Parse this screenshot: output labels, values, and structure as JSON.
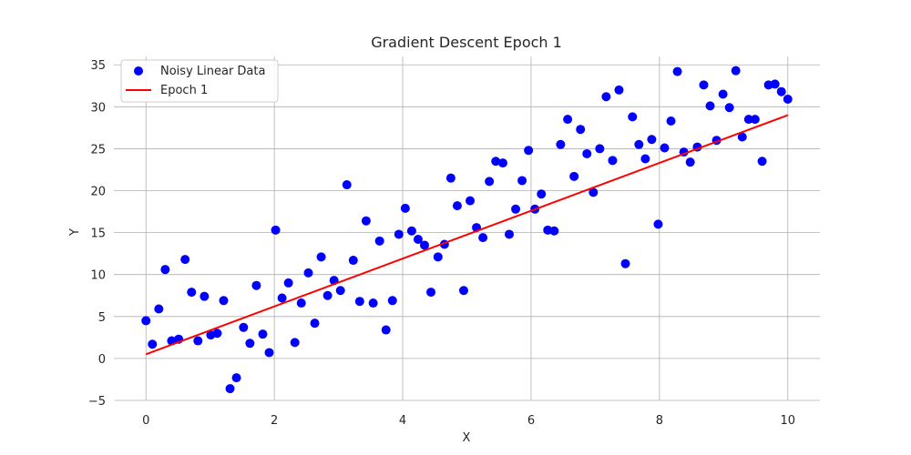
{
  "chart_data": {
    "type": "scatter",
    "title": "Gradient Descent Epoch 1",
    "xlabel": "X",
    "ylabel": "Y",
    "xlim": [
      -0.5,
      10.5
    ],
    "ylim": [
      -5,
      36
    ],
    "xticks": [
      0,
      2,
      4,
      6,
      8,
      10
    ],
    "yticks": [
      -5,
      0,
      5,
      10,
      15,
      20,
      25,
      30,
      35
    ],
    "xtick_labels": [
      "0",
      "2",
      "4",
      "6",
      "8",
      "10"
    ],
    "ytick_labels": [
      "−5",
      "0",
      "5",
      "10",
      "15",
      "20",
      "25",
      "30",
      "35"
    ],
    "grid": true,
    "legend_position": "top-left",
    "series": [
      {
        "name": "Noisy Linear Data",
        "kind": "scatter",
        "color": "#0000ff",
        "x": [
          0.0,
          0.1,
          0.2,
          0.3,
          0.4,
          0.51,
          0.61,
          0.71,
          0.81,
          0.91,
          1.01,
          1.11,
          1.21,
          1.31,
          1.41,
          1.52,
          1.62,
          1.72,
          1.82,
          1.92,
          2.02,
          2.12,
          2.22,
          2.32,
          2.42,
          2.53,
          2.63,
          2.73,
          2.83,
          2.93,
          3.03,
          3.13,
          3.23,
          3.33,
          3.43,
          3.54,
          3.64,
          3.74,
          3.84,
          3.94,
          4.04,
          4.14,
          4.24,
          4.34,
          4.44,
          4.55,
          4.65,
          4.75,
          4.85,
          4.95,
          5.05,
          5.15,
          5.25,
          5.35,
          5.45,
          5.56,
          5.66,
          5.76,
          5.86,
          5.96,
          6.06,
          6.16,
          6.26,
          6.36,
          6.46,
          6.57,
          6.67,
          6.77,
          6.87,
          6.97,
          7.07,
          7.17,
          7.27,
          7.37,
          7.47,
          7.58,
          7.68,
          7.78,
          7.88,
          7.98,
          8.08,
          8.18,
          8.28,
          8.38,
          8.48,
          8.59,
          8.69,
          8.79,
          8.89,
          8.99,
          9.09,
          9.19,
          9.29,
          9.39,
          9.49,
          9.6,
          9.7,
          9.8,
          9.9,
          10.0
        ],
        "y": [
          4.5,
          1.7,
          5.9,
          10.6,
          2.1,
          2.3,
          11.8,
          7.9,
          2.1,
          7.4,
          2.8,
          3.0,
          6.9,
          -3.6,
          -2.3,
          3.7,
          1.8,
          8.7,
          2.9,
          0.7,
          15.3,
          7.2,
          9.0,
          1.9,
          6.6,
          10.2,
          4.2,
          12.1,
          7.5,
          9.3,
          8.1,
          20.7,
          11.7,
          6.8,
          16.4,
          6.6,
          14.0,
          3.4,
          6.9,
          14.8,
          17.9,
          15.2,
          14.2,
          13.5,
          7.9,
          12.1,
          13.6,
          21.5,
          18.2,
          8.1,
          18.8,
          15.6,
          14.4,
          21.1,
          23.5,
          23.3,
          14.8,
          17.8,
          21.2,
          24.8,
          17.8,
          19.6,
          15.3,
          15.2,
          25.5,
          28.5,
          21.7,
          27.3,
          24.4,
          19.8,
          25.0,
          31.2,
          23.6,
          32.0,
          11.3,
          28.8,
          25.5,
          23.8,
          26.1,
          16.0,
          25.1,
          28.3,
          34.2,
          24.6,
          23.4,
          25.2,
          32.6,
          30.1,
          26.0,
          31.5,
          29.9,
          34.3,
          26.4,
          28.5,
          28.5,
          23.5,
          32.6,
          32.7,
          31.8,
          30.9
        ]
      },
      {
        "name": "Epoch 1",
        "kind": "line",
        "color": "#ff0000",
        "x": [
          0,
          10
        ],
        "y": [
          0.5,
          29.0
        ]
      }
    ]
  }
}
